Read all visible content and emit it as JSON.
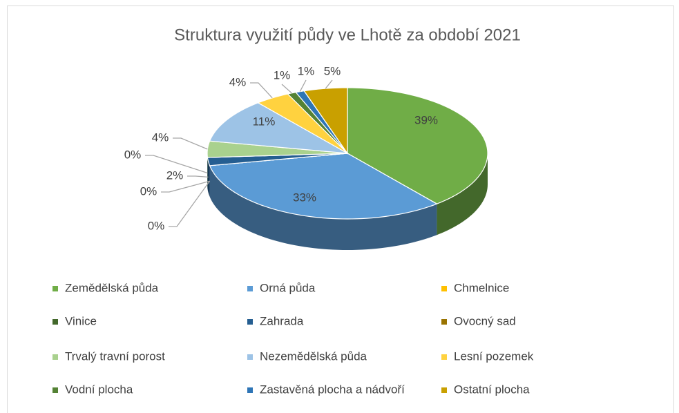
{
  "chart_data": {
    "type": "pie3d",
    "title": "Struktura využití půdy ve Lhotě za období 2021",
    "categories": [
      "Zemědělská půda",
      "Orná půda",
      "Chmelnice",
      "Vinice",
      "Zahrada",
      "Ovocný sad",
      "Trvalý travní porost",
      "Nezemědělská půda",
      "Lesní pozemek",
      "Vodní plocha",
      "Zastavěná plocha a nádvoří",
      "Ostatní plocha"
    ],
    "values": [
      39,
      33,
      0,
      0,
      2,
      0,
      4,
      11,
      4,
      1,
      1,
      5
    ],
    "value_labels": [
      "39%",
      "33%",
      "0%",
      "0%",
      "2%",
      "0%",
      "4%",
      "11%",
      "4%",
      "1%",
      "1%",
      "5%"
    ],
    "colors": [
      "#70ad47",
      "#5b9bd5",
      "#ffc000",
      "#43682b",
      "#255e91",
      "#997300",
      "#a9d18e",
      "#9dc3e6",
      "#ffd23f",
      "#548235",
      "#2e75b6",
      "#c9a000"
    ],
    "legend": "bottom"
  }
}
